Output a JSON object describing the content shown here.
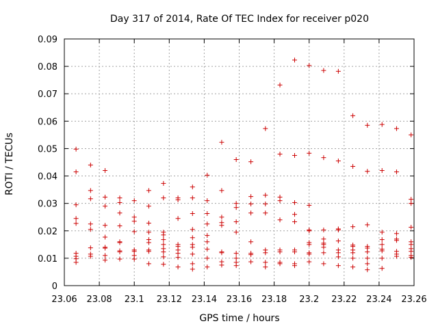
{
  "chart_data": {
    "type": "scatter",
    "title": "Day 317 of 2014, Rate Of TEC Index for receiver p020",
    "xlabel": "GPS time / hours",
    "ylabel": "ROTI / TECUs",
    "xlim": [
      23.06,
      23.26
    ],
    "ylim": [
      0,
      0.09
    ],
    "xticks": [
      "23.06",
      "23.08",
      "23.1",
      "23.12",
      "23.14",
      "23.16",
      "23.18",
      "23.2",
      "23.22",
      "23.24",
      "23.26"
    ],
    "yticks": [
      "0",
      "0.01",
      "0.02",
      "0.03",
      "0.04",
      "0.05",
      "0.06",
      "0.07",
      "0.08",
      "0.09"
    ],
    "grid": true,
    "marker": "+",
    "marker_color": "#cc0000",
    "series": [
      {
        "name": "p020",
        "points": [
          [
            23.0667,
            0.0498
          ],
          [
            23.0667,
            0.0415
          ],
          [
            23.0667,
            0.0295
          ],
          [
            23.0667,
            0.0245
          ],
          [
            23.0667,
            0.0227
          ],
          [
            23.0667,
            0.0118
          ],
          [
            23.0667,
            0.0107
          ],
          [
            23.0667,
            0.0098
          ],
          [
            23.0667,
            0.0085
          ],
          [
            23.075,
            0.044
          ],
          [
            23.075,
            0.0347
          ],
          [
            23.075,
            0.0317
          ],
          [
            23.075,
            0.0225
          ],
          [
            23.075,
            0.0205
          ],
          [
            23.075,
            0.0138
          ],
          [
            23.075,
            0.0115
          ],
          [
            23.075,
            0.0107
          ],
          [
            23.0833,
            0.042
          ],
          [
            23.0833,
            0.0323
          ],
          [
            23.0833,
            0.029
          ],
          [
            23.0833,
            0.022
          ],
          [
            23.0833,
            0.0177
          ],
          [
            23.0833,
            0.014
          ],
          [
            23.0833,
            0.0137
          ],
          [
            23.0833,
            0.011
          ],
          [
            23.0833,
            0.0093
          ],
          [
            23.0917,
            0.032
          ],
          [
            23.0917,
            0.0303
          ],
          [
            23.0917,
            0.0265
          ],
          [
            23.0917,
            0.0218
          ],
          [
            23.0917,
            0.016
          ],
          [
            23.0917,
            0.0157
          ],
          [
            23.0917,
            0.0127
          ],
          [
            23.0917,
            0.0123
          ],
          [
            23.0917,
            0.0097
          ],
          [
            23.1,
            0.031
          ],
          [
            23.1,
            0.025
          ],
          [
            23.1,
            0.0235
          ],
          [
            23.1,
            0.0197
          ],
          [
            23.1,
            0.013
          ],
          [
            23.1,
            0.0125
          ],
          [
            23.1,
            0.011
          ],
          [
            23.1,
            0.0097
          ],
          [
            23.1083,
            0.0347
          ],
          [
            23.1083,
            0.029
          ],
          [
            23.1083,
            0.0228
          ],
          [
            23.1083,
            0.0195
          ],
          [
            23.1083,
            0.0168
          ],
          [
            23.1083,
            0.0157
          ],
          [
            23.1083,
            0.013
          ],
          [
            23.1083,
            0.0125
          ],
          [
            23.1083,
            0.008
          ],
          [
            23.1167,
            0.0373
          ],
          [
            23.1167,
            0.032
          ],
          [
            23.1167,
            0.0195
          ],
          [
            23.1167,
            0.0185
          ],
          [
            23.1167,
            0.0168
          ],
          [
            23.1167,
            0.015
          ],
          [
            23.1167,
            0.0135
          ],
          [
            23.1167,
            0.0123
          ],
          [
            23.1167,
            0.0105
          ],
          [
            23.1167,
            0.0078
          ],
          [
            23.125,
            0.032
          ],
          [
            23.125,
            0.0313
          ],
          [
            23.125,
            0.0245
          ],
          [
            23.125,
            0.015
          ],
          [
            23.125,
            0.0143
          ],
          [
            23.125,
            0.013
          ],
          [
            23.125,
            0.0118
          ],
          [
            23.125,
            0.0103
          ],
          [
            23.125,
            0.0068
          ],
          [
            23.1333,
            0.036
          ],
          [
            23.1333,
            0.032
          ],
          [
            23.1333,
            0.0263
          ],
          [
            23.1333,
            0.0205
          ],
          [
            23.1333,
            0.0175
          ],
          [
            23.1333,
            0.015
          ],
          [
            23.1333,
            0.014
          ],
          [
            23.1333,
            0.0115
          ],
          [
            23.1333,
            0.008
          ],
          [
            23.1333,
            0.006
          ],
          [
            23.1417,
            0.0403
          ],
          [
            23.1417,
            0.031
          ],
          [
            23.1417,
            0.0263
          ],
          [
            23.1417,
            0.0225
          ],
          [
            23.1417,
            0.0183
          ],
          [
            23.1417,
            0.016
          ],
          [
            23.1417,
            0.0133
          ],
          [
            23.1417,
            0.01
          ],
          [
            23.1417,
            0.0068
          ],
          [
            23.15,
            0.0523
          ],
          [
            23.15,
            0.0347
          ],
          [
            23.15,
            0.025
          ],
          [
            23.15,
            0.023
          ],
          [
            23.15,
            0.022
          ],
          [
            23.15,
            0.0123
          ],
          [
            23.15,
            0.012
          ],
          [
            23.15,
            0.0087
          ],
          [
            23.15,
            0.0075
          ],
          [
            23.1583,
            0.046
          ],
          [
            23.1583,
            0.03
          ],
          [
            23.1583,
            0.0285
          ],
          [
            23.1583,
            0.0233
          ],
          [
            23.1583,
            0.0195
          ],
          [
            23.1583,
            0.0118
          ],
          [
            23.1583,
            0.01
          ],
          [
            23.1583,
            0.0085
          ],
          [
            23.1583,
            0.0073
          ],
          [
            23.1667,
            0.0452
          ],
          [
            23.1667,
            0.0325
          ],
          [
            23.1667,
            0.0298
          ],
          [
            23.1667,
            0.0265
          ],
          [
            23.1667,
            0.016
          ],
          [
            23.1667,
            0.0118
          ],
          [
            23.1667,
            0.0113
          ],
          [
            23.1667,
            0.0087
          ],
          [
            23.175,
            0.0573
          ],
          [
            23.175,
            0.033
          ],
          [
            23.175,
            0.0298
          ],
          [
            23.175,
            0.0265
          ],
          [
            23.175,
            0.013
          ],
          [
            23.175,
            0.012
          ],
          [
            23.175,
            0.0085
          ],
          [
            23.175,
            0.0068
          ],
          [
            23.1833,
            0.0732
          ],
          [
            23.1833,
            0.048
          ],
          [
            23.1833,
            0.0323
          ],
          [
            23.1833,
            0.031
          ],
          [
            23.1833,
            0.024
          ],
          [
            23.1833,
            0.013
          ],
          [
            23.1833,
            0.0123
          ],
          [
            23.1833,
            0.0085
          ],
          [
            23.1833,
            0.008
          ],
          [
            23.1917,
            0.0823
          ],
          [
            23.1917,
            0.0475
          ],
          [
            23.1917,
            0.0303
          ],
          [
            23.1917,
            0.026
          ],
          [
            23.1917,
            0.0233
          ],
          [
            23.1917,
            0.013
          ],
          [
            23.1917,
            0.0123
          ],
          [
            23.1917,
            0.008
          ],
          [
            23.1917,
            0.0073
          ],
          [
            23.2,
            0.0803
          ],
          [
            23.2,
            0.0483
          ],
          [
            23.2,
            0.0293
          ],
          [
            23.2,
            0.0203
          ],
          [
            23.2,
            0.02
          ],
          [
            23.2,
            0.0157
          ],
          [
            23.2,
            0.015
          ],
          [
            23.2,
            0.012
          ],
          [
            23.2,
            0.0115
          ],
          [
            23.2,
            0.0087
          ],
          [
            23.2083,
            0.0785
          ],
          [
            23.2083,
            0.0467
          ],
          [
            23.2083,
            0.0203
          ],
          [
            23.2083,
            0.017
          ],
          [
            23.2083,
            0.0155
          ],
          [
            23.2083,
            0.015
          ],
          [
            23.2083,
            0.014
          ],
          [
            23.2083,
            0.012
          ],
          [
            23.2083,
            0.008
          ],
          [
            23.2167,
            0.0782
          ],
          [
            23.2167,
            0.0455
          ],
          [
            23.2167,
            0.0207
          ],
          [
            23.2167,
            0.0203
          ],
          [
            23.2167,
            0.0163
          ],
          [
            23.2167,
            0.013
          ],
          [
            23.2167,
            0.012
          ],
          [
            23.2167,
            0.0105
          ],
          [
            23.2167,
            0.0073
          ],
          [
            23.225,
            0.062
          ],
          [
            23.225,
            0.0435
          ],
          [
            23.225,
            0.0215
          ],
          [
            23.225,
            0.0148
          ],
          [
            23.225,
            0.0143
          ],
          [
            23.225,
            0.013
          ],
          [
            23.225,
            0.012
          ],
          [
            23.225,
            0.01
          ],
          [
            23.225,
            0.0068
          ],
          [
            23.2333,
            0.0585
          ],
          [
            23.2333,
            0.0417
          ],
          [
            23.2333,
            0.0222
          ],
          [
            23.2333,
            0.0143
          ],
          [
            23.2333,
            0.0137
          ],
          [
            23.2333,
            0.0123
          ],
          [
            23.2333,
            0.01
          ],
          [
            23.2333,
            0.008
          ],
          [
            23.2333,
            0.0058
          ],
          [
            23.2417,
            0.0588
          ],
          [
            23.2417,
            0.042
          ],
          [
            23.2417,
            0.0195
          ],
          [
            23.2417,
            0.0168
          ],
          [
            23.2417,
            0.015
          ],
          [
            23.2417,
            0.0133
          ],
          [
            23.2417,
            0.0127
          ],
          [
            23.2417,
            0.01
          ],
          [
            23.2417,
            0.0063
          ],
          [
            23.25,
            0.0573
          ],
          [
            23.25,
            0.0415
          ],
          [
            23.25,
            0.019
          ],
          [
            23.25,
            0.017
          ],
          [
            23.25,
            0.0165
          ],
          [
            23.25,
            0.0125
          ],
          [
            23.25,
            0.0115
          ],
          [
            23.25,
            0.0107
          ],
          [
            23.2583,
            0.055
          ],
          [
            23.2583,
            0.0315
          ],
          [
            23.2583,
            0.03
          ],
          [
            23.2583,
            0.0213
          ],
          [
            23.2583,
            0.016
          ],
          [
            23.2583,
            0.015
          ],
          [
            23.2583,
            0.0135
          ],
          [
            23.2583,
            0.0125
          ],
          [
            23.2583,
            0.011
          ],
          [
            23.2583,
            0.0103
          ]
        ]
      }
    ]
  }
}
